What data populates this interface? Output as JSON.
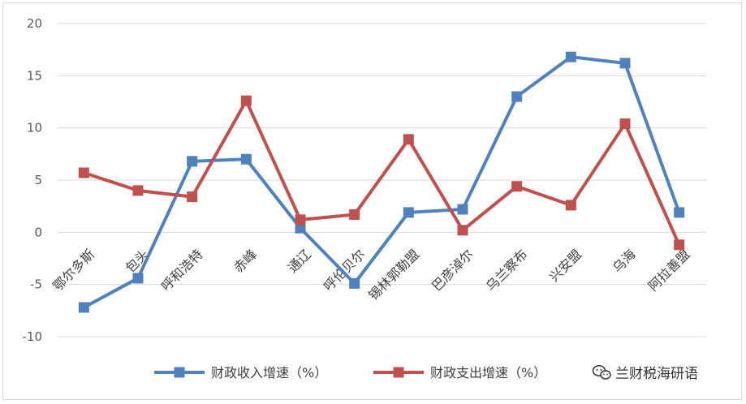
{
  "chart_data": {
    "type": "line",
    "categories": [
      "鄂尔多斯",
      "包头",
      "呼和浩特",
      "赤峰",
      "通辽",
      "呼伦贝尔",
      "锡林郭勒盟",
      "巴彦淖尔",
      "乌兰察布",
      "兴安盟",
      "乌海",
      "阿拉善盟"
    ],
    "series": [
      {
        "name": "财政收入增速（%）",
        "color": "#4f81bd",
        "values": [
          -7.2,
          -4.4,
          6.8,
          7.0,
          0.4,
          -4.9,
          1.9,
          2.2,
          13.0,
          16.8,
          16.2,
          1.9
        ]
      },
      {
        "name": "财政支出增速（%）",
        "color": "#c0504d",
        "values": [
          5.7,
          4.0,
          3.4,
          12.6,
          1.2,
          1.7,
          8.9,
          0.2,
          4.4,
          2.6,
          10.4,
          -1.2
        ]
      }
    ],
    "ylim": [
      -10,
      20
    ],
    "yticks": [
      "20",
      "15",
      "10",
      "5",
      "0",
      "-5",
      "-10"
    ],
    "grid": true,
    "legend": "bottom"
  },
  "watermark": {
    "text": "兰财税海研语",
    "icon": "wechat-icon"
  }
}
